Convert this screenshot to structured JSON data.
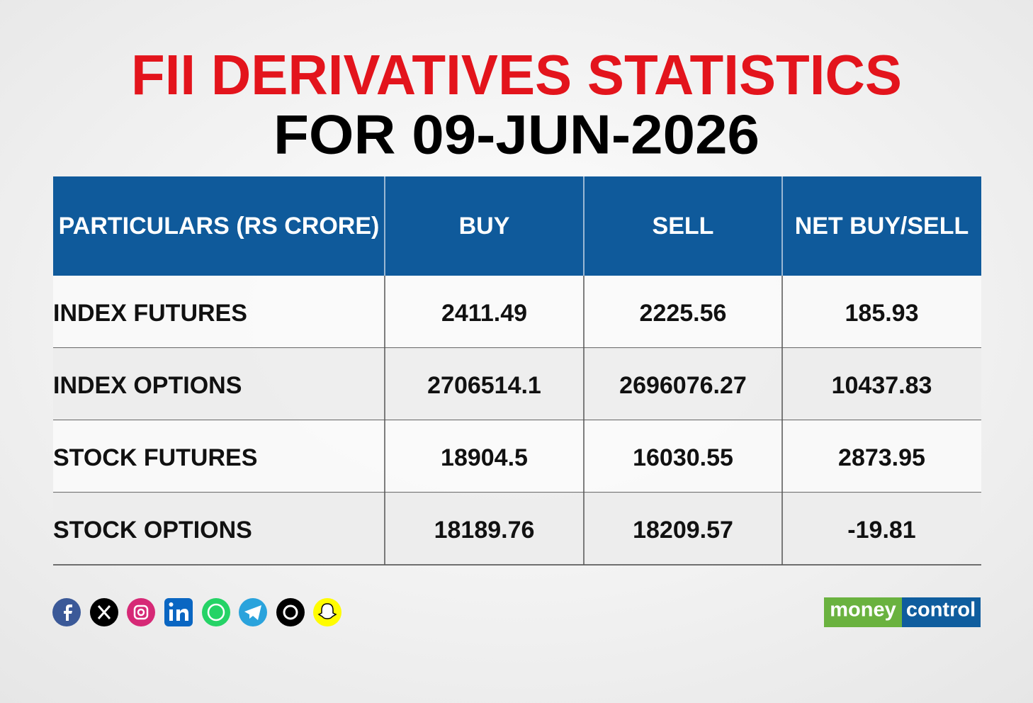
{
  "title": {
    "line1": "FII DERIVATIVES STATISTICS",
    "line2": "FOR 09-JUN-2026"
  },
  "table": {
    "header": [
      "PARTICULARS (RS CRORE)",
      "BUY",
      "SELL",
      "NET BUY/SELL"
    ],
    "rows": [
      [
        "INDEX FUTURES",
        2411.49,
        2225.56,
        185.93
      ],
      [
        "INDEX OPTIONS",
        2706514.1,
        2696076.27,
        10437.83
      ],
      [
        "STOCK FUTURES",
        18904.5,
        16030.55,
        2873.95
      ],
      [
        "STOCK OPTIONS",
        18189.76,
        18209.57,
        -19.81
      ]
    ]
  },
  "logo": {
    "part1": "money",
    "part2": "control"
  }
}
